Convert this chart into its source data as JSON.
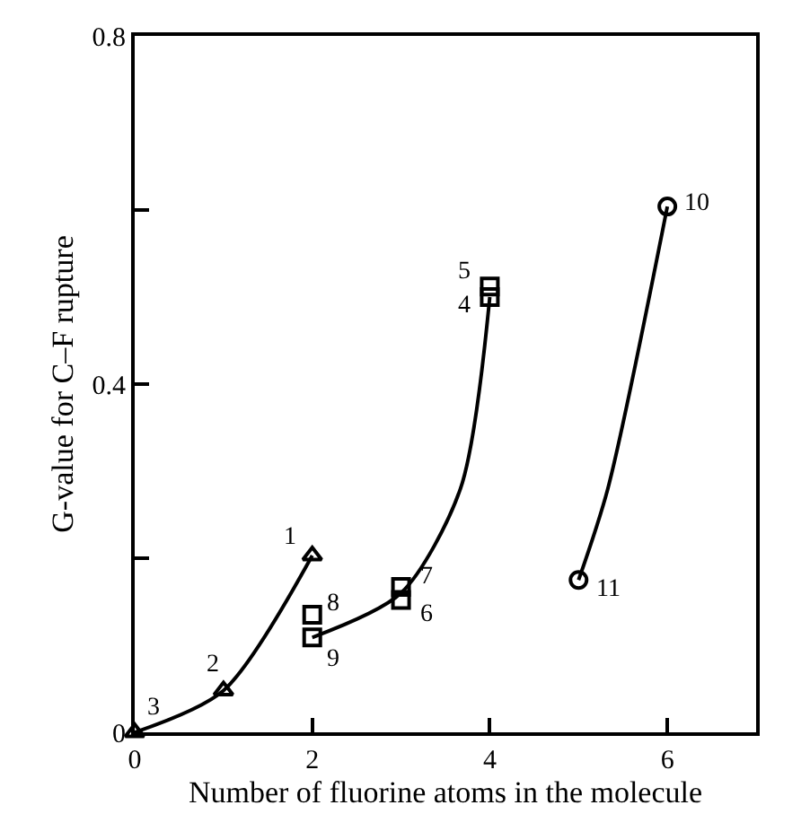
{
  "chart_data": {
    "type": "scatter",
    "xlabel": "Number of fluorine atoms in the molecule",
    "ylabel": "G-value for C–F rupture",
    "xlim": [
      0,
      7
    ],
    "xticks": [
      0,
      2,
      4,
      6
    ],
    "ylim": [
      0,
      0.8
    ],
    "yticks": [
      0,
      {
        "value": 0.2,
        "label": null
      },
      0.4,
      {
        "value": 0.6,
        "label": null
      },
      0.8
    ],
    "series": [
      {
        "type": "line",
        "color": "#000000",
        "marker": "none",
        "x": [
          0,
          1,
          2
        ],
        "values": [
          0,
          0.048,
          0.203
        ]
      },
      {
        "type": "line",
        "color": "#000000",
        "marker": "none",
        "x": [
          2,
          3,
          3.67,
          4
        ],
        "values": [
          0.109,
          0.16,
          0.28,
          0.5
        ]
      },
      {
        "type": "line",
        "color": "#000000",
        "marker": "none",
        "x": [
          5,
          5.33,
          6
        ],
        "values": [
          0.175,
          0.28,
          0.604
        ]
      },
      {
        "color": "#000000",
        "marker": "triangle",
        "x": [
          2,
          1,
          0
        ],
        "values": [
          0.203,
          0.048,
          0
        ]
      },
      {
        "color": "#000000",
        "marker": "square",
        "x": [
          4,
          4,
          3,
          3,
          2,
          2
        ],
        "values": [
          0.5,
          0.512,
          0.152,
          0.167,
          0.135,
          0.109
        ]
      },
      {
        "color": "#000000",
        "marker": "circle",
        "x": [
          6,
          5
        ],
        "values": [
          0.604,
          0.175
        ]
      }
    ],
    "annotations": [
      {
        "text": "1",
        "x": 2,
        "y": 0.203
      },
      {
        "text": "2",
        "x": 1,
        "y": 0.048
      },
      {
        "text": "3",
        "x": 0,
        "y": 0
      },
      {
        "text": "4",
        "x": 4,
        "y": 0.5
      },
      {
        "text": "5",
        "x": 4,
        "y": 0.512
      },
      {
        "text": "6",
        "x": 3,
        "y": 0.152
      },
      {
        "text": "7",
        "x": 3,
        "y": 0.167
      },
      {
        "text": "8",
        "x": 2,
        "y": 0.135
      },
      {
        "text": "9",
        "x": 2,
        "y": 0.109
      },
      {
        "text": "10",
        "x": 6,
        "y": 0.604
      },
      {
        "text": "11",
        "x": 5,
        "y": 0.175
      }
    ]
  }
}
